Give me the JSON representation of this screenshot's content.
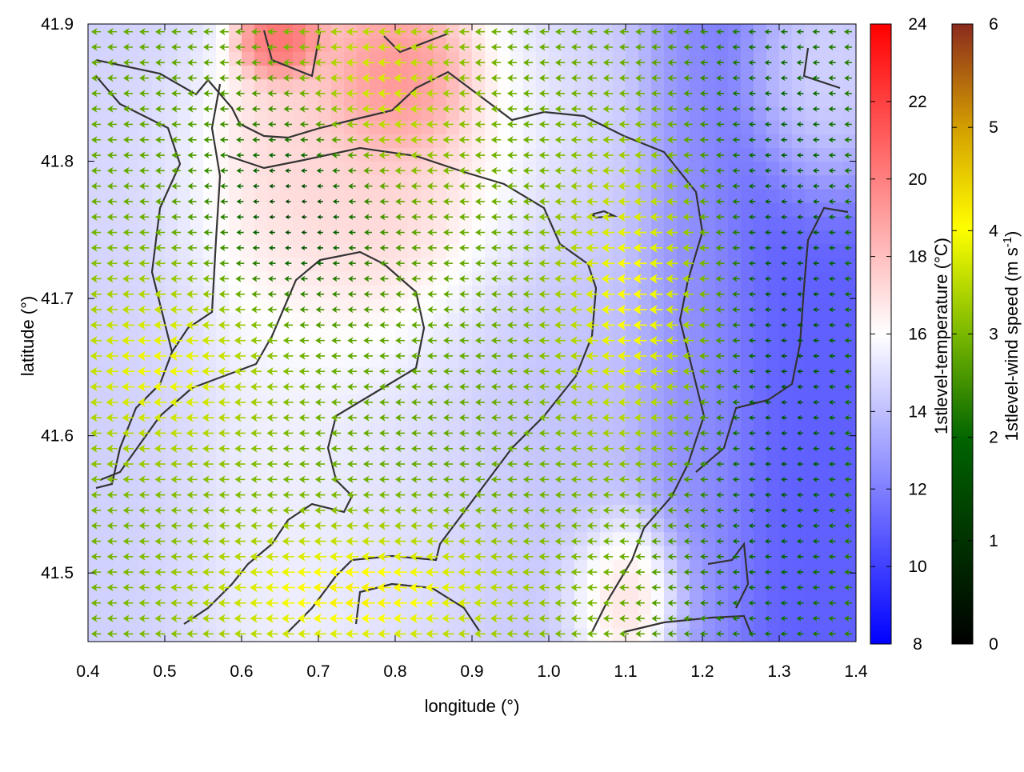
{
  "chart_data": {
    "type": "heatmap",
    "title": "",
    "xlabel": "longitude (°)",
    "ylabel": "latitude (°)",
    "xlim": [
      0.4,
      1.4
    ],
    "ylim": [
      41.45,
      41.9
    ],
    "x_ticks": [
      "0.4",
      "0.5",
      "0.6",
      "0.7",
      "0.8",
      "0.9",
      "1.0",
      "1.1",
      "1.2",
      "1.3",
      "1.4"
    ],
    "y_ticks": [
      "41.5",
      "41.6",
      "41.7",
      "41.8",
      "41.9"
    ],
    "grid": false,
    "colorbars": [
      {
        "label": "1stlevel-temperature (°C)",
        "range": [
          8,
          24
        ],
        "ticks": [
          "8",
          "10",
          "12",
          "14",
          "16",
          "18",
          "20",
          "22",
          "24"
        ],
        "colors": [
          "#0000ff",
          "#ffffff",
          "#ff0000"
        ]
      },
      {
        "label_main": "1stlevel-wind speed (m s",
        "label_sup": "-1",
        "label_end": ")",
        "range": [
          0,
          6
        ],
        "ticks": [
          "0",
          "1",
          "2",
          "3",
          "4",
          "5",
          "6"
        ],
        "colors": [
          "#000000",
          "#006400",
          "#7ab800",
          "#ffff00",
          "#d4a000",
          "#8b2a1e"
        ]
      }
    ],
    "temperature_regions": [
      {
        "lon": [
          0.4,
          0.55
        ],
        "lat": [
          41.45,
          41.85
        ],
        "value": 14.5
      },
      {
        "lon": [
          0.55,
          0.75
        ],
        "lat": [
          41.45,
          41.7
        ],
        "value": 15.5
      },
      {
        "lon": [
          0.6,
          0.9
        ],
        "lat": [
          41.7,
          41.85
        ],
        "value": 17.5
      },
      {
        "lon": [
          0.62,
          0.68
        ],
        "lat": [
          41.87,
          41.9
        ],
        "value": 21.0
      },
      {
        "lon": [
          0.75,
          0.85
        ],
        "lat": [
          41.82,
          41.88
        ],
        "value": 20.0
      },
      {
        "lon": [
          0.75,
          0.95
        ],
        "lat": [
          41.45,
          41.65
        ],
        "value": 15.0
      },
      {
        "lon": [
          0.9,
          1.1
        ],
        "lat": [
          41.45,
          41.75
        ],
        "value": 14.0
      },
      {
        "lon": [
          1.05,
          1.15
        ],
        "lat": [
          41.45,
          41.52
        ],
        "value": 18.0
      },
      {
        "lon": [
          1.15,
          1.25
        ],
        "lat": [
          41.45,
          41.75
        ],
        "value": 12.5
      },
      {
        "lon": [
          1.25,
          1.4
        ],
        "lat": [
          41.45,
          41.8
        ],
        "value": 11.0
      },
      {
        "lon": [
          1.3,
          1.4
        ],
        "lat": [
          41.8,
          41.9
        ],
        "value": 15.5
      }
    ],
    "wind_direction": "westward",
    "wind_speed_regions": [
      {
        "lon": [
          0.4,
          0.6
        ],
        "lat": [
          41.6,
          41.7
        ],
        "value": 3.5
      },
      {
        "lon": [
          0.6,
          0.9
        ],
        "lat": [
          41.45,
          41.52
        ],
        "value": 3.8
      },
      {
        "lon": [
          1.05,
          1.2
        ],
        "lat": [
          41.62,
          41.78
        ],
        "value": 3.9
      },
      {
        "lon": [
          0.7,
          0.85
        ],
        "lat": [
          41.8,
          41.9
        ],
        "value": 3.4
      },
      {
        "lon": [
          0.6,
          0.75
        ],
        "lat": [
          41.72,
          41.82
        ],
        "value": 0.6
      },
      {
        "lon": [
          1.2,
          1.4
        ],
        "lat": [
          41.45,
          41.9
        ],
        "value": 0.9
      }
    ]
  }
}
